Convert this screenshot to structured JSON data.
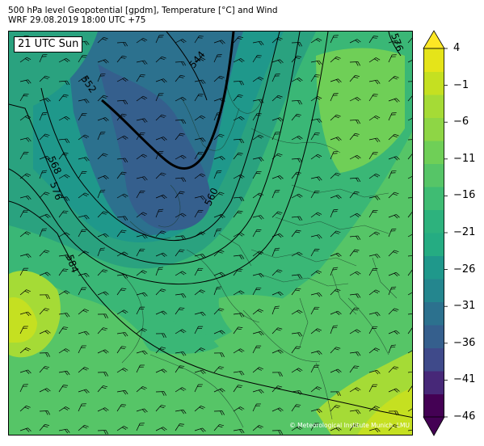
{
  "title": {
    "line1": "500 hPa level Geopotential [gpdm], Temperature [°C] and Wind",
    "line2": "WRF 29.08.2019 18:00 UTC +75"
  },
  "time_label": "21 UTC Sun",
  "copyright": "© Meteorological Institute Munich, LMU",
  "colorbar": {
    "tick_labels": [
      "4",
      "−1",
      "−6",
      "−11",
      "−16",
      "−21",
      "−26",
      "−31",
      "−36",
      "−41",
      "−46"
    ],
    "levels": [
      -46,
      -43.5,
      -41,
      -38.5,
      -36,
      -33.5,
      -31,
      -28.5,
      -26,
      -23.5,
      -21,
      -18.5,
      -16,
      -13.5,
      -11,
      -8.5,
      -6,
      -3.5,
      -1,
      1.5,
      4
    ],
    "colors": [
      "#440154",
      "#472878",
      "#3f4a8a",
      "#355f8d",
      "#2c718e",
      "#24868e",
      "#1f988b",
      "#25ac82",
      "#2db27d",
      "#3fbc73",
      "#56c567",
      "#6fcf57",
      "#8ed645",
      "#a5db36",
      "#c5e021",
      "#e5e419"
    ],
    "over_color": "#fde725",
    "under_color": "#440154"
  },
  "contours": [
    {
      "label": "544"
    },
    {
      "label": "552"
    },
    {
      "label": "560"
    },
    {
      "label": "568"
    },
    {
      "label": "576"
    },
    {
      "label": "576"
    },
    {
      "label": "584"
    }
  ],
  "colors": {
    "bg_field": "#56c567",
    "cold_core": "#3a5c8c",
    "mid_cold": "#2c7d8e",
    "cool": "#2aa27f",
    "cool2": "#3ab776",
    "warm": "#8ccf4a",
    "warmest": "#a8d83a"
  }
}
